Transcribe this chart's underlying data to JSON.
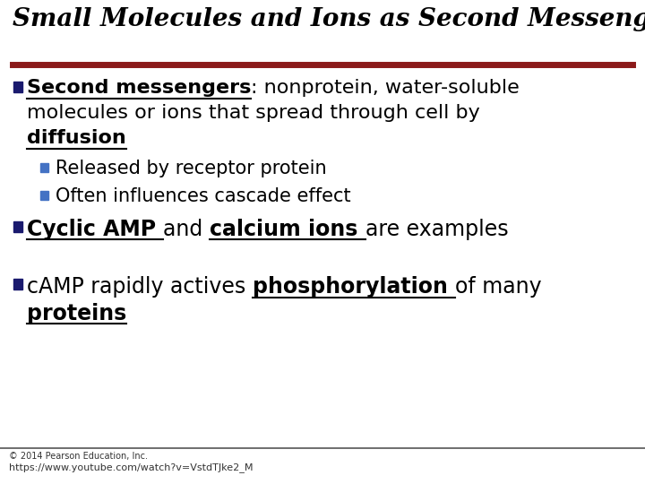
{
  "title": "Small Molecules and Ions as Second Messengers",
  "bg_color": "#ffffff",
  "separator_color": "#8B1A1A",
  "separator_thickness": 5,
  "bullet_color_main": "#1a1a6e",
  "bullet_color_sub": "#4472C4",
  "footer_text": "© 2014 Pearson Education, Inc.",
  "footer_url": "https://www.youtube.com/watch?v=VstdTJke2_M",
  "title_fs": 20,
  "main_fs": 16,
  "sub_fs": 15,
  "small_fs": 7
}
